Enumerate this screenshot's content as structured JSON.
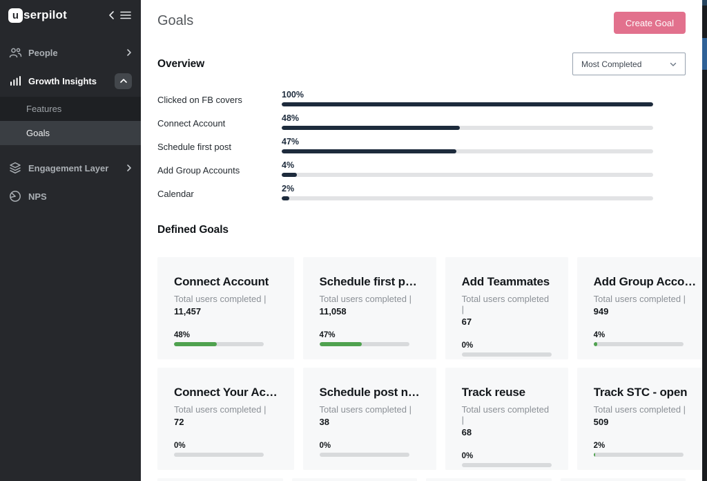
{
  "sidebar": {
    "logo": {
      "badge": "u",
      "text": "serpilot"
    },
    "items": [
      {
        "id": "people",
        "label": "People"
      },
      {
        "id": "growth-insights",
        "label": "Growth Insights"
      },
      {
        "id": "features",
        "label": "Features"
      },
      {
        "id": "goals",
        "label": "Goals"
      },
      {
        "id": "engagement-layer",
        "label": "Engagement Layer"
      },
      {
        "id": "nps",
        "label": "NPS"
      }
    ]
  },
  "header": {
    "title": "Goals",
    "create_button": "Create Goal"
  },
  "overview": {
    "heading": "Overview",
    "sort_dropdown_value": "Most Completed",
    "rows": [
      {
        "label": "Clicked on FB covers",
        "percent": "100%",
        "value": 100
      },
      {
        "label": "Connect Account",
        "percent": "48%",
        "value": 48
      },
      {
        "label": "Schedule first post",
        "percent": "47%",
        "value": 47
      },
      {
        "label": "Add Group Accounts",
        "percent": "4%",
        "value": 4
      },
      {
        "label": "Calendar",
        "percent": "2%",
        "value": 2
      }
    ]
  },
  "defined_goals": {
    "heading": "Defined Goals",
    "stat_label": "Total users completed |",
    "cards": [
      {
        "title": "Connect Account",
        "total": "11,457",
        "percent": "48%",
        "value": 48
      },
      {
        "title": "Schedule first p…",
        "total": "11,058",
        "percent": "47%",
        "value": 47
      },
      {
        "title": "Add Teammates",
        "total": "67",
        "percent": "0%",
        "value": 0
      },
      {
        "title": "Add Group Acco…",
        "total": "949",
        "percent": "4%",
        "value": 4
      },
      {
        "title": "Connect Your Ac…",
        "total": "72",
        "percent": "0%",
        "value": 0
      },
      {
        "title": "Schedule post n…",
        "total": "38",
        "percent": "0%",
        "value": 0
      },
      {
        "title": "Track reuse",
        "total": "68",
        "percent": "0%",
        "value": 0
      },
      {
        "title": "Track STC - open",
        "total": "509",
        "percent": "2%",
        "value": 2
      }
    ]
  },
  "colors": {
    "accent_pink": "#e2718d",
    "overview_bar": "#1d2b3c",
    "progress_green": "#4fa24f",
    "track_gray": "#e2e3e5",
    "sidebar_bg": "#26282c",
    "sidebar_selected_bg": "#3a3e43",
    "sidebar_subitem_bg": "#1e2023",
    "scroll_thumb_blue": "#2f6197"
  },
  "chart_data": {
    "type": "bar",
    "orientation": "horizontal",
    "title": "Overview",
    "categories": [
      "Clicked on FB covers",
      "Connect Account",
      "Schedule first post",
      "Add Group Accounts",
      "Calendar"
    ],
    "values": [
      100,
      48,
      47,
      4,
      2
    ],
    "unit": "%",
    "xlim": [
      0,
      100
    ]
  }
}
